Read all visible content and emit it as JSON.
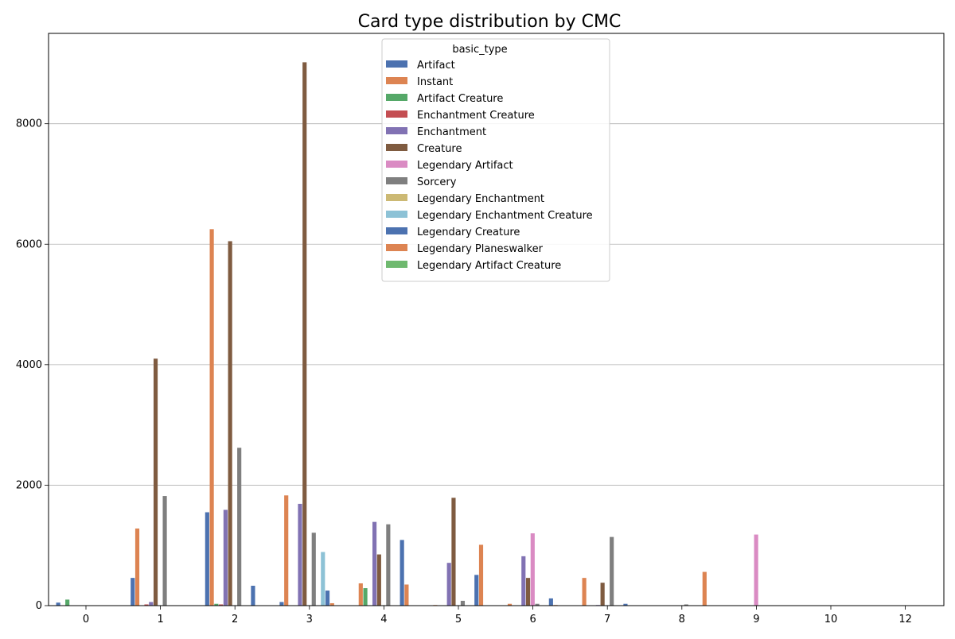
{
  "chart_data": {
    "type": "bar",
    "title": "Card type distribution by CMC",
    "xlabel": "",
    "ylabel": "",
    "categories": [
      "0",
      "1",
      "2",
      "3",
      "4",
      "5",
      "6",
      "7",
      "8",
      "9",
      "10",
      "12"
    ],
    "ylim": [
      0,
      9500
    ],
    "yticks": [
      0,
      2000,
      4000,
      6000,
      8000
    ],
    "grid": "y",
    "legend_title": "basic_type",
    "legend_position": "top-center",
    "series": [
      {
        "name": "Artifact",
        "color": "#4c72b0",
        "values": [
          50,
          460,
          1550,
          60,
          0,
          0,
          0,
          0,
          0,
          0,
          0,
          0
        ]
      },
      {
        "name": "Instant",
        "color": "#dd8452",
        "values": [
          0,
          1280,
          6250,
          1830,
          370,
          10,
          30,
          460,
          0,
          0,
          0,
          0
        ]
      },
      {
        "name": "Artifact Creature",
        "color": "#55a868",
        "values": [
          100,
          0,
          30,
          0,
          290,
          0,
          0,
          0,
          0,
          0,
          0,
          0
        ]
      },
      {
        "name": "Enchantment Creature",
        "color": "#c44e52",
        "values": [
          0,
          20,
          20,
          0,
          0,
          0,
          0,
          0,
          0,
          0,
          0,
          0
        ]
      },
      {
        "name": "Enchantment",
        "color": "#8172b3",
        "values": [
          0,
          60,
          1590,
          1690,
          1390,
          710,
          820,
          10,
          0,
          0,
          0,
          0
        ]
      },
      {
        "name": "Creature",
        "color": "#7f5b40",
        "values": [
          0,
          4100,
          6050,
          9020,
          850,
          1790,
          460,
          380,
          0,
          0,
          0,
          0
        ]
      },
      {
        "name": "Legendary Artifact",
        "color": "#da8bc3",
        "values": [
          0,
          0,
          0,
          0,
          0,
          0,
          1200,
          0,
          0,
          1180,
          0,
          0
        ]
      },
      {
        "name": "Sorcery",
        "color": "#7f7f7f",
        "values": [
          0,
          1820,
          2620,
          1210,
          1350,
          80,
          30,
          1140,
          20,
          0,
          0,
          0
        ]
      },
      {
        "name": "Legendary Enchantment",
        "color": "#ccb974",
        "values": [
          0,
          0,
          0,
          0,
          0,
          0,
          0,
          0,
          0,
          0,
          0,
          0
        ]
      },
      {
        "name": "Legendary Enchantment Creature",
        "color": "#8dc2d6",
        "values": [
          0,
          0,
          0,
          890,
          0,
          0,
          0,
          0,
          0,
          0,
          0,
          0
        ]
      },
      {
        "name": "Legendary Creature",
        "color": "#4c72b0",
        "values": [
          0,
          0,
          330,
          250,
          1090,
          510,
          120,
          30,
          0,
          0,
          0,
          0
        ]
      },
      {
        "name": "Legendary Planeswalker",
        "color": "#dd8452",
        "values": [
          0,
          0,
          0,
          40,
          350,
          1010,
          10,
          0,
          560,
          0,
          0,
          0
        ]
      },
      {
        "name": "Legendary Artifact Creature",
        "color": "#6fb96f",
        "values": [
          0,
          0,
          0,
          0,
          0,
          0,
          0,
          0,
          0,
          0,
          0,
          0
        ]
      }
    ]
  }
}
